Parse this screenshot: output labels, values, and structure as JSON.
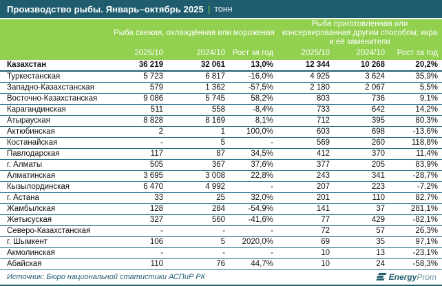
{
  "chart_data": {
    "type": "table",
    "title": "Производство рыбы. Январь–октябрь 2025",
    "separator": "|",
    "unit": "тонн",
    "group_headers": [
      "Рыба свежая, охлаждённая или мороженая",
      "Рыба приготовленная или консервированная другим способом; икра и её заменители"
    ],
    "sub_headers": [
      "2025/10",
      "2024/10",
      "Рост за год",
      "2025/10",
      "2024/10",
      "Рост за год"
    ],
    "rows": [
      {
        "region": "Казахстан",
        "bold": true,
        "values": [
          "36 219",
          "32 061",
          "13,0%",
          "12 344",
          "10 268",
          "20,2%"
        ]
      },
      {
        "region": "Туркестанская",
        "bold": false,
        "values": [
          "5 723",
          "6 817",
          "-16,0%",
          "4 925",
          "3 624",
          "35,9%"
        ]
      },
      {
        "region": "Западно-Казахстанская",
        "bold": false,
        "values": [
          "579",
          "1 362",
          "-57,5%",
          "2 180",
          "2 067",
          "5,5%"
        ]
      },
      {
        "region": "Восточно-Казахстанская",
        "bold": false,
        "values": [
          "9 086",
          "5 745",
          "58,2%",
          "803",
          "736",
          "9,1%"
        ]
      },
      {
        "region": "Карагандинская",
        "bold": false,
        "values": [
          "511",
          "558",
          "-8,4%",
          "733",
          "642",
          "14,2%"
        ]
      },
      {
        "region": "Атырауская",
        "bold": false,
        "values": [
          "8 828",
          "8 169",
          "8,1%",
          "712",
          "395",
          "80,3%"
        ]
      },
      {
        "region": "Актюбинская",
        "bold": false,
        "values": [
          "2",
          "1",
          "100,0%",
          "603",
          "698",
          "-13,6%"
        ]
      },
      {
        "region": "Костанайская",
        "bold": false,
        "values": [
          "-",
          "5",
          "-",
          "569",
          "260",
          "118,8%"
        ]
      },
      {
        "region": "Павлодарская",
        "bold": false,
        "values": [
          "117",
          "87",
          "34,5%",
          "412",
          "370",
          "11,4%"
        ]
      },
      {
        "region": "г. Алматы",
        "bold": false,
        "values": [
          "505",
          "367",
          "37,6%",
          "377",
          "205",
          "83,9%"
        ]
      },
      {
        "region": "Алматинская",
        "bold": false,
        "values": [
          "3 695",
          "3 008",
          "22,8%",
          "243",
          "341",
          "-28,7%"
        ]
      },
      {
        "region": "Кызылординская",
        "bold": false,
        "values": [
          "6 470",
          "4 992",
          "-",
          "207",
          "223",
          "-7,2%"
        ]
      },
      {
        "region": "г. Астана",
        "bold": false,
        "values": [
          "33",
          "25",
          "32,0%",
          "201",
          "110",
          "82,7%"
        ]
      },
      {
        "region": "Жамбылская",
        "bold": false,
        "values": [
          "128",
          "284",
          "-54,9%",
          "141",
          "37",
          "281,1%"
        ]
      },
      {
        "region": "Жетысуская",
        "bold": false,
        "values": [
          "327",
          "560",
          "-41,6%",
          "77",
          "429",
          "-82,1%"
        ]
      },
      {
        "region": "Северо-Казахстанская",
        "bold": false,
        "values": [
          "-",
          "-",
          "-",
          "72",
          "57",
          "26,3%"
        ]
      },
      {
        "region": "г. Шымкент",
        "bold": false,
        "values": [
          "106",
          "5",
          "2020,0%",
          "69",
          "35",
          "97,1%"
        ]
      },
      {
        "region": "Акмолинская",
        "bold": false,
        "values": [
          "-",
          "-",
          "-",
          "10",
          "13",
          "-23,1%"
        ]
      },
      {
        "region": "Абайская",
        "bold": false,
        "values": [
          "110",
          "76",
          "44,7%",
          "10",
          "24",
          "-58,3%"
        ]
      }
    ],
    "source": "Источник: Бюро национальной статистики АСПиР РК",
    "logo": {
      "icon": "energyprom-bars-icon",
      "text_bold": "Energy",
      "text_light": "Prom"
    }
  },
  "colors": {
    "titlebar_teal": "#1F5C6E",
    "header_green": "#92D050",
    "row_line_teal": "#26708C",
    "accent_green": "#92D050",
    "footer_teal": "#1F5C6E"
  }
}
